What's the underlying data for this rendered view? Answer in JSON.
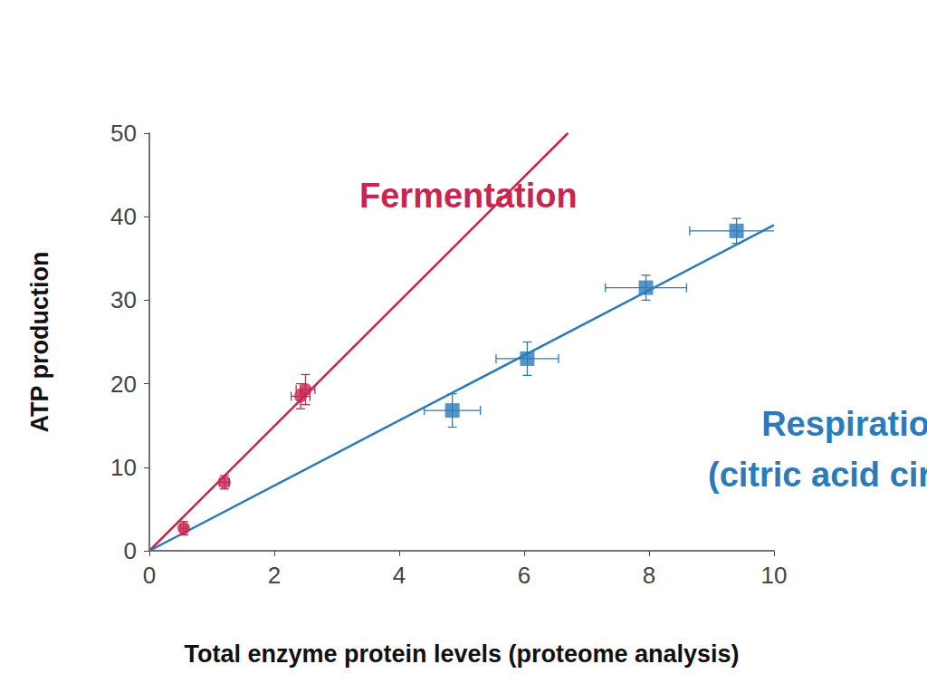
{
  "chart_data": {
    "type": "scatter",
    "x_label": "Total enzyme protein levels (proteome analysis)",
    "y_label": "ATP production",
    "xlim": [
      0,
      10
    ],
    "xticks": [
      0,
      2,
      4,
      6,
      8,
      10
    ],
    "ylim": [
      0,
      50
    ],
    "yticks": [
      0,
      10,
      20,
      30,
      40,
      50
    ],
    "grid": false,
    "series": [
      {
        "name": "Fermentation",
        "color": "#c8264f",
        "type": "scatter",
        "marker": "circle",
        "x": [
          0.55,
          1.2,
          2.42,
          2.5
        ],
        "values": [
          2.7,
          8.2,
          18.5,
          19.3
        ],
        "x_err": [
          0.05,
          0.08,
          0.15,
          0.15
        ],
        "y_err": [
          0.8,
          0.8,
          1.5,
          1.8
        ],
        "fit_x": [
          0,
          6.7
        ],
        "fit_values": [
          0,
          50
        ]
      },
      {
        "name": "Respiration (citric acid circuit)",
        "color": "#2b7bba",
        "type": "scatter",
        "marker": "square",
        "x": [
          4.85,
          6.05,
          7.95,
          9.4
        ],
        "values": [
          16.8,
          23,
          31.5,
          38.3
        ],
        "x_err": [
          0.45,
          0.5,
          0.65,
          0.75
        ],
        "y_err": [
          2,
          2,
          1.5,
          1.5
        ],
        "fit_x": [
          0,
          10
        ],
        "fit_values": [
          0,
          39
        ]
      }
    ]
  }
}
